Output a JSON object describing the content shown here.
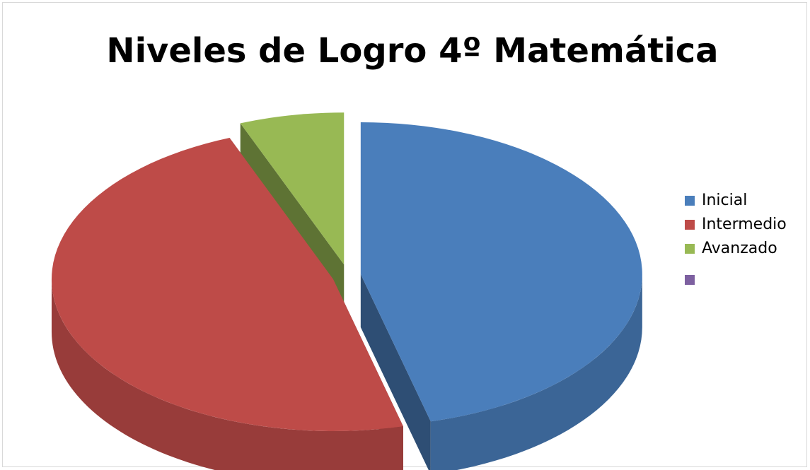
{
  "chart_data": {
    "type": "pie",
    "title": "Niveles de Logro 4º Matemática",
    "categories": [
      "Inicial",
      "Intermedio",
      "Avanzado",
      null
    ],
    "values": [
      46,
      48,
      6,
      0
    ],
    "colors": [
      "#4a7ebb",
      "#be4b48",
      "#98b954",
      "#7d60a0"
    ],
    "legend": "right"
  }
}
